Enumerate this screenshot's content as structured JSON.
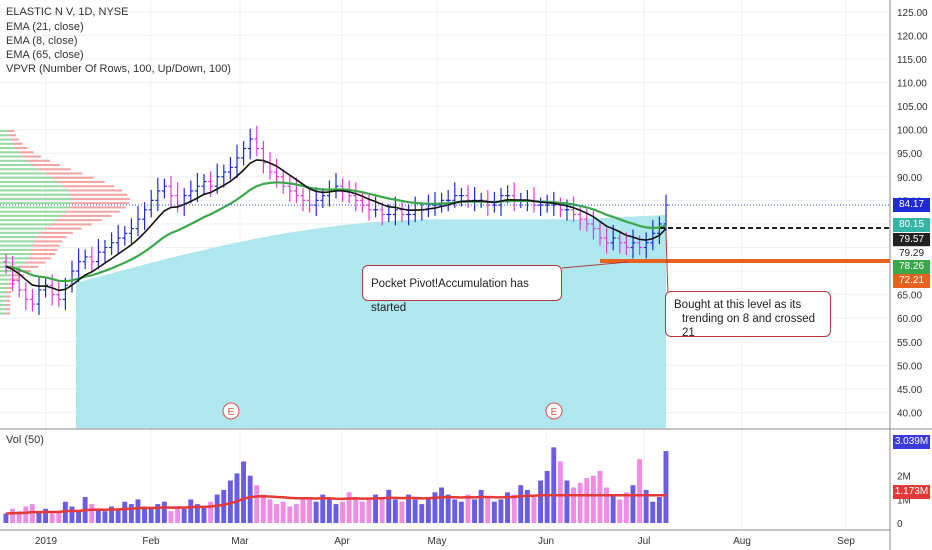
{
  "legend": {
    "title": "ELASTIC N V, 1D, NYSE",
    "ema21": "EMA (21, close)",
    "ema8": "EMA (8, close)",
    "ema65": "EMA (65, close)",
    "vpvr": "VPVR (Number Of Rows, 100, Up/Down, 100)",
    "vol": "Vol (50)"
  },
  "annotations": {
    "pocket_pivot": "Pocket Pivot!Accumulation has started",
    "bought_line1": "Bought at this level as its",
    "bought_line2": "trending on 8 and crossed 21"
  },
  "earnings_marker": "E",
  "price_tags": {
    "last": "84.17",
    "t1": "80.15",
    "t2": "79.57",
    "t3": "79.29",
    "t4": "78.26",
    "t5": "72.21"
  },
  "volume_tags": {
    "last": "3.039M",
    "avg": "1.173M"
  },
  "colors": {
    "up": "#1e2bd6",
    "down": "#e63bd8",
    "ema21": "#3aa84a",
    "ema8": "#111111",
    "volume_area": "#aee7ee",
    "vol_avg": "#e53935",
    "support": "#e8621f",
    "resistance_dash": "#222222",
    "vpvr_green": "#7ccf8a",
    "vpvr_red": "#f08a8a"
  },
  "chart_data": {
    "type": "candlestick",
    "title": "ELASTIC N V, 1D, NYSE",
    "x_ticks": [
      "2019",
      "Feb",
      "Mar",
      "Apr",
      "May",
      "Jun",
      "Jul",
      "Aug",
      "Sep"
    ],
    "y_ticks": [
      "40.00",
      "45.00",
      "50.00",
      "55.00",
      "60.00",
      "65.00",
      "70.00",
      "75.00",
      "80.00",
      "85.00",
      "90.00",
      "95.00",
      "100.00",
      "105.00",
      "110.00",
      "115.00",
      "120.00",
      "125.00"
    ],
    "ylim": [
      36.5,
      127.5
    ],
    "vol_ticks": [
      "0",
      "1M",
      "2M"
    ],
    "vol_ylim": [
      0,
      3.3
    ],
    "closes": [
      71,
      68,
      66,
      64,
      63,
      66,
      67,
      65,
      64,
      67,
      70,
      72,
      73,
      72,
      74,
      75,
      76,
      77,
      78,
      79,
      81,
      83,
      85,
      87,
      88,
      86,
      84,
      86,
      87,
      88,
      89,
      88,
      90,
      91,
      92,
      94,
      96,
      98,
      96,
      93,
      91,
      90,
      88,
      87,
      86,
      85,
      84,
      85,
      86,
      87,
      88,
      87,
      86,
      85,
      84,
      83,
      83,
      82,
      82,
      83,
      82,
      82,
      83,
      83,
      84,
      84,
      85,
      85,
      86,
      86,
      85,
      85,
      85,
      84,
      84,
      86,
      86,
      85,
      85,
      85,
      84,
      84,
      84,
      84,
      83,
      83,
      82,
      81,
      80,
      79,
      77,
      76,
      77,
      76,
      75,
      76,
      75,
      76,
      78,
      80,
      84
    ],
    "volumes": [
      0.4,
      0.6,
      0.5,
      0.7,
      0.8,
      0.5,
      0.6,
      0.4,
      0.5,
      0.9,
      0.7,
      0.5,
      1.1,
      0.8,
      0.6,
      0.5,
      0.7,
      0.6,
      0.9,
      0.8,
      1.0,
      0.7,
      0.6,
      0.8,
      0.9,
      0.5,
      0.7,
      0.6,
      1.0,
      0.8,
      0.7,
      0.9,
      1.2,
      1.4,
      1.8,
      2.1,
      2.6,
      2.0,
      1.6,
      1.2,
      1.0,
      0.8,
      0.9,
      0.7,
      0.8,
      1.1,
      1.0,
      0.9,
      1.2,
      1.0,
      0.8,
      0.9,
      1.3,
      1.1,
      0.9,
      1.0,
      1.2,
      1.1,
      1.4,
      1.0,
      0.9,
      1.2,
      1.0,
      0.8,
      1.1,
      1.3,
      1.5,
      1.2,
      1.0,
      0.9,
      1.2,
      1.0,
      1.4,
      1.1,
      0.9,
      1.0,
      1.3,
      1.2,
      1.6,
      1.4,
      1.1,
      1.8,
      2.2,
      3.2,
      2.6,
      1.8,
      1.5,
      1.7,
      1.9,
      2.0,
      2.2,
      1.5,
      1.2,
      1.0,
      1.3,
      1.6,
      2.7,
      1.4,
      0.9,
      1.1,
      3.04
    ],
    "ema21_last": 79.29,
    "ema8_last": 79.57,
    "support_level": 78.26,
    "resistance_level": 80.15,
    "last_price": 84.17,
    "vol_avg_last": 1.173,
    "last_volume": 3.039
  }
}
